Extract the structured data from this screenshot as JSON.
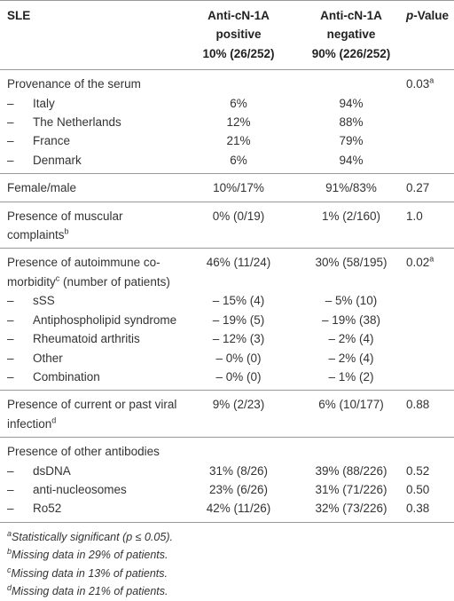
{
  "header": {
    "cells": [
      {
        "lines": [
          "SLE"
        ]
      },
      {
        "lines": [
          "Anti-cN-1A",
          "positive",
          "10% (26/252)"
        ]
      },
      {
        "lines": [
          "Anti-cN-1A",
          "negative",
          "90% (226/252)"
        ]
      },
      {
        "italic": "p",
        "text": "-Value"
      }
    ]
  },
  "groups": [
    {
      "rows": [
        {
          "cells": [
            "Provenance of the serum",
            null,
            null,
            {
              "text": "0.03",
              "sup": "a"
            }
          ]
        },
        {
          "cells": [
            {
              "dash": "–",
              "text": "Italy"
            },
            "6%",
            "94%",
            null
          ]
        },
        {
          "cells": [
            {
              "dash": "–",
              "text": "The Netherlands"
            },
            "12%",
            "88%",
            null
          ]
        },
        {
          "cells": [
            {
              "dash": "–",
              "text": "France"
            },
            "21%",
            "79%",
            null
          ]
        },
        {
          "cells": [
            {
              "dash": "–",
              "text": "Denmark"
            },
            "6%",
            "94%",
            null
          ]
        }
      ]
    },
    {
      "rows": [
        {
          "cells": [
            "Female/male",
            "10%/17%",
            "91%/83%",
            "0.27"
          ]
        }
      ]
    },
    {
      "rows": [
        {
          "cells": [
            {
              "text": "Presence of muscular complaints",
              "sup": "b"
            },
            "0% (0/19)",
            "1% (2/160)",
            "1.0"
          ]
        }
      ]
    },
    {
      "rows": [
        {
          "cells": [
            {
              "text": "Presence of autoimmune co-morbidity",
              "sup": "c",
              "after": " (number of patients)"
            },
            "46% (11/24)",
            "30% (58/195)",
            {
              "text": "0.02",
              "sup": "a"
            }
          ]
        },
        {
          "cells": [
            {
              "dash": "–",
              "text": "sSS"
            },
            "– 15% (4)",
            "– 5% (10)",
            null
          ]
        },
        {
          "cells": [
            {
              "dash": "–",
              "text": "Antiphospholipid syndrome"
            },
            "– 19% (5)",
            "– 19% (38)",
            null
          ]
        },
        {
          "cells": [
            {
              "dash": "–",
              "text": "Rheumatoid arthritis"
            },
            "– 12% (3)",
            "– 2% (4)",
            null
          ]
        },
        {
          "cells": [
            {
              "dash": "–",
              "text": "Other"
            },
            "– 0% (0)",
            "– 2% (4)",
            null
          ]
        },
        {
          "cells": [
            {
              "dash": "–",
              "text": "Combination"
            },
            "– 0% (0)",
            "– 1% (2)",
            null
          ]
        }
      ]
    },
    {
      "rows": [
        {
          "cells": [
            {
              "text": "Presence of current or past viral infection",
              "sup": "d"
            },
            "9% (2/23)",
            "6% (10/177)",
            "0.88"
          ]
        }
      ]
    },
    {
      "rows": [
        {
          "cells": [
            "Presence of other antibodies",
            null,
            null,
            null
          ]
        },
        {
          "cells": [
            {
              "dash": "–",
              "text": "dsDNA"
            },
            "31% (8/26)",
            "39% (88/226)",
            "0.52"
          ]
        },
        {
          "cells": [
            {
              "dash": "–",
              "text": "anti-nucleosomes"
            },
            "23% (6/26)",
            "31% (71/226)",
            "0.50"
          ]
        },
        {
          "cells": [
            {
              "dash": "–",
              "text": "Ro52"
            },
            "42% (11/26)",
            "32% (73/226)",
            "0.38"
          ]
        }
      ]
    }
  ],
  "footnotes": [
    {
      "sup": "a",
      "text": "Statistically significant (p ≤ 0.05)."
    },
    {
      "sup": "b",
      "text": "Missing data in 29% of patients."
    },
    {
      "sup": "c",
      "text": "Missing data in 13% of patients."
    },
    {
      "sup": "d",
      "text": "Missing data in 21% of patients."
    }
  ]
}
